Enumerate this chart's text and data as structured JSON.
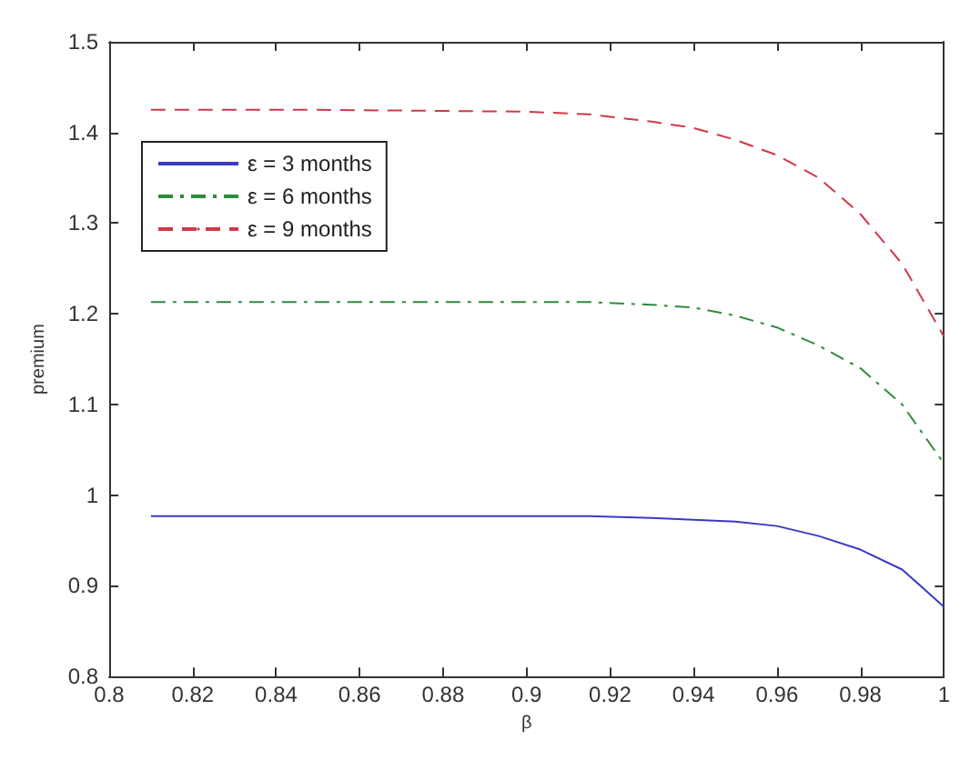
{
  "chart_data": {
    "type": "line",
    "xlabel": "β",
    "ylabel": "premium",
    "xlim": [
      0.8,
      1
    ],
    "ylim": [
      0.8,
      1.5
    ],
    "xticks": [
      0.8,
      0.82,
      0.84,
      0.86,
      0.88,
      0.9,
      0.92,
      0.94,
      0.96,
      0.98,
      1
    ],
    "yticks": [
      0.8,
      0.9,
      1,
      1.1,
      1.2,
      1.3,
      1.4,
      1.5
    ],
    "x": [
      0.81,
      0.85,
      0.9,
      0.915,
      0.93,
      0.94,
      0.95,
      0.96,
      0.97,
      0.98,
      0.99,
      1
    ],
    "series": [
      {
        "name": "ε = 3 months",
        "color": "#3a3ac4",
        "line_style": "solid",
        "values": [
          0.977,
          0.977,
          0.977,
          0.977,
          0.975,
          0.973,
          0.971,
          0.966,
          0.955,
          0.94,
          0.918,
          0.877
        ]
      },
      {
        "name": "ε = 6 months",
        "color": "#2e8b3a",
        "line_style": "dashdot",
        "values": [
          1.213,
          1.213,
          1.213,
          1.213,
          1.21,
          1.207,
          1.198,
          1.185,
          1.165,
          1.14,
          1.1,
          1.035
        ]
      },
      {
        "name": "ε = 9 months",
        "color": "#d03848",
        "line_style": "dashed",
        "values": [
          1.425,
          1.425,
          1.423,
          1.42,
          1.412,
          1.405,
          1.392,
          1.375,
          1.35,
          1.31,
          1.255,
          1.175
        ]
      }
    ],
    "legend": "top left",
    "grid": false,
    "marker": "none"
  }
}
